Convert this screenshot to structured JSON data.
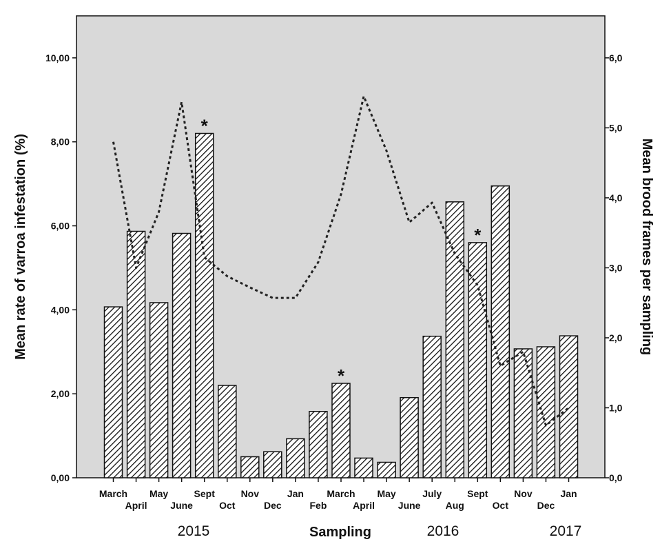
{
  "chart_data": {
    "type": "bar",
    "xlabel": "Sampling",
    "ylabel": "Mean rate of varroa infestation (%)",
    "y2label": "Mean brood frames per sampling",
    "ylim": [
      0,
      11
    ],
    "y2lim": [
      0,
      6.6
    ],
    "yticks": [
      "0,00",
      "2,00",
      "4,00",
      "6,00",
      "8,00",
      "10,00"
    ],
    "y2ticks": [
      "0,0",
      "1,0",
      "2,0",
      "3,0",
      "4,0",
      "5,0",
      "6,0"
    ],
    "grid": false,
    "background_color": "#d9d9d9",
    "categories": [
      "March",
      "April",
      "May",
      "June",
      "Sept",
      "Oct",
      "Nov",
      "Dec",
      "Jan",
      "Feb",
      "March",
      "April",
      "May",
      "June",
      "July",
      "Aug",
      "Sept",
      "Oct",
      "Nov",
      "Dec",
      "Jan"
    ],
    "years": [
      "2015",
      "2016",
      "2017"
    ],
    "series": [
      {
        "type": "bar",
        "axis": "left",
        "pattern": "diagonal-hatch",
        "values": [
          4.07,
          5.87,
          4.17,
          5.82,
          8.2,
          2.2,
          0.5,
          0.62,
          0.93,
          1.58,
          2.25,
          0.47,
          0.37,
          1.91,
          3.37,
          6.57,
          5.6,
          6.95,
          3.07,
          3.12,
          3.38
        ]
      },
      {
        "type": "line",
        "axis": "right",
        "style": "dotted",
        "values": [
          4.8,
          3.0,
          3.8,
          5.37,
          3.15,
          2.88,
          2.72,
          2.57,
          2.57,
          3.08,
          4.05,
          5.45,
          4.67,
          3.65,
          3.93,
          3.2,
          2.75,
          1.6,
          1.8,
          0.75,
          1.0
        ]
      }
    ],
    "annotations": [
      "*",
      "*",
      "*"
    ],
    "annotated_bars": [
      4,
      10,
      16
    ]
  }
}
